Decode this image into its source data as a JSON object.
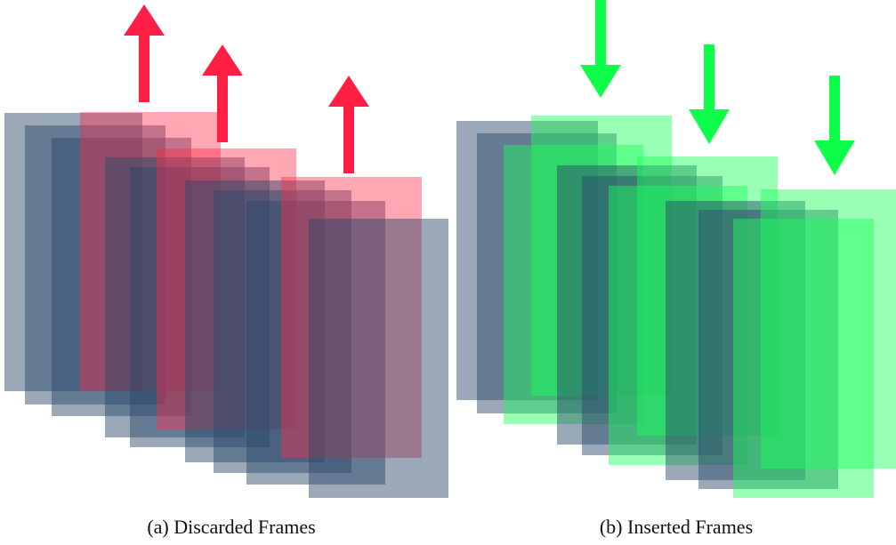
{
  "panels": [
    {
      "caption": "(a) Discarded Frames"
    },
    {
      "caption": "(b) Inserted Frames"
    }
  ]
}
